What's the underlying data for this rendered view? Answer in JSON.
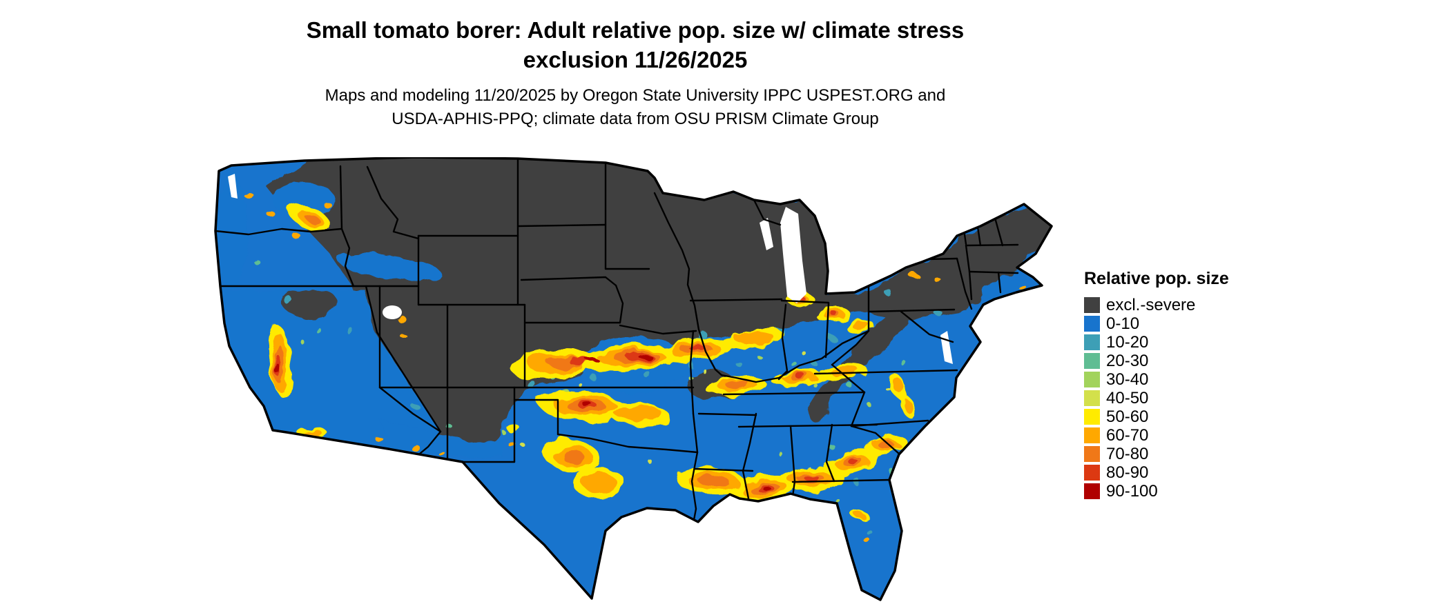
{
  "header": {
    "title_line1": "Small tomato borer: Adult relative pop. size w/ climate stress",
    "title_line2": "exclusion 11/26/2025",
    "subtitle_line1": "Maps and modeling 11/20/2025 by Oregon State University IPPC USPEST.ORG and",
    "subtitle_line2": "USDA-APHIS-PPQ; climate data from OSU PRISM Climate Group"
  },
  "legend": {
    "title": "Relative pop. size",
    "items": [
      {
        "key": "excl",
        "label": "excl.-severe",
        "color": "#404040"
      },
      {
        "key": "c0",
        "label": "0-10",
        "color": "#1874CD"
      },
      {
        "key": "c10",
        "label": "10-20",
        "color": "#3D9FB6"
      },
      {
        "key": "c20",
        "label": "20-30",
        "color": "#5FBD93"
      },
      {
        "key": "c30",
        "label": "30-40",
        "color": "#A2D35C"
      },
      {
        "key": "c40",
        "label": "40-50",
        "color": "#D3E04B"
      },
      {
        "key": "c50",
        "label": "50-60",
        "color": "#FFEB00"
      },
      {
        "key": "c60",
        "label": "60-70",
        "color": "#FFA800"
      },
      {
        "key": "c70",
        "label": "70-80",
        "color": "#F07818"
      },
      {
        "key": "c80",
        "label": "80-90",
        "color": "#DC3912"
      },
      {
        "key": "c90",
        "label": "90-100",
        "color": "#B00000"
      }
    ]
  }
}
